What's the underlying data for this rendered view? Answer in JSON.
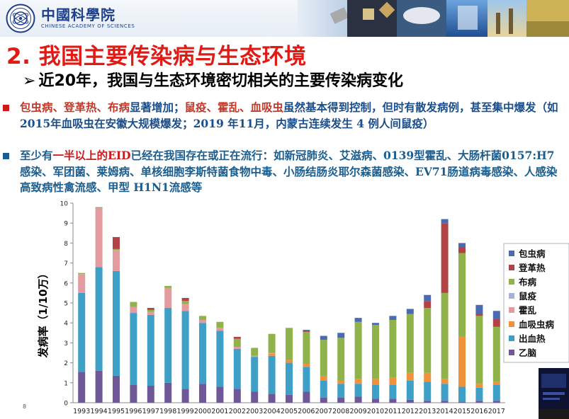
{
  "header": {
    "org_name_cn": "中國科學院",
    "org_name_en": "CHINESE ACADEMY OF SCIENCES"
  },
  "section_title": "2. 我国主要传染病与生态环境",
  "subtitle": "近20年，我国与生态环境密切相关的主要传染病变化",
  "bullets": {
    "b1_part1": "包虫病、登革热、布病",
    "b1_part2": "显著增加；",
    "b1_part3": "鼠疫、霍乱、血吸虫",
    "b1_part4": "虽然基本得到控制，但时有散发病例，甚至集中爆发（如2015年血吸虫在安徽大规模爆发；2019 年11月，内蒙古连续发生 4 例人间鼠疫）",
    "b2_part1": "至少有",
    "b2_part2": "一半以上的EID",
    "b2_part3": "已经在我国存在或正在流行：如新冠肺炎、艾滋病、0139型霍乱、大肠杆菌0157:H7感染、军团菌、莱姆病、单核细胞李斯特菌食物中毒、小肠结肠炎耶尔森菌感染、EV71肠道病毒感染、人感染高致病性禽流感、甲型 H1N1流感等"
  },
  "page_number": "8",
  "colors": {
    "title_red": "#e01b16",
    "bullet_blue": "#1a5d8f"
  },
  "chart_data": {
    "type": "bar",
    "stacked": true,
    "ylabel": "发病率（1/10万）",
    "ylim": [
      0,
      10
    ],
    "yticks": [
      0,
      1,
      2,
      3,
      4,
      5,
      6,
      7,
      8,
      9,
      10
    ],
    "grid": false,
    "legend_position": "right",
    "categories": [
      "1993",
      "1994",
      "1995",
      "1996",
      "1997",
      "1998",
      "1999",
      "2000",
      "2001",
      "2002",
      "2003",
      "2004",
      "2005",
      "2006",
      "2007",
      "2008",
      "2009",
      "2010",
      "2011",
      "2012",
      "2013",
      "2014",
      "2015",
      "2016",
      "2017"
    ],
    "series": [
      {
        "name": "乙脑",
        "color": "#6f5898",
        "values": [
          1.55,
          1.6,
          1.35,
          0.9,
          0.85,
          1.0,
          0.7,
          0.95,
          0.8,
          0.7,
          0.55,
          0.45,
          0.4,
          0.55,
          0.25,
          0.25,
          0.3,
          0.2,
          0.2,
          0.15,
          0.1,
          0.1,
          0.05,
          0.1,
          0.1
        ]
      },
      {
        "name": "出血热",
        "color": "#3ea0c6",
        "values": [
          3.95,
          5.2,
          5.25,
          3.6,
          3.55,
          3.75,
          3.9,
          3.05,
          2.8,
          2.0,
          1.75,
          1.9,
          1.6,
          1.25,
          0.85,
          0.7,
          0.65,
          0.7,
          0.7,
          0.95,
          0.95,
          0.85,
          0.75,
          0.65,
          0.8
        ]
      },
      {
        "name": "血吸虫病",
        "color": "#f0923c",
        "values": [
          0.0,
          0.0,
          0.0,
          0.0,
          0.0,
          0.0,
          0.0,
          0.0,
          0.0,
          0.0,
          0.0,
          0.1,
          0.15,
          0.15,
          0.25,
          0.15,
          0.25,
          0.3,
          0.35,
          0.4,
          0.45,
          0.25,
          2.5,
          0.2,
          0.15
        ]
      },
      {
        "name": "霍乱",
        "color": "#e39ba0",
        "values": [
          0.95,
          2.95,
          1.05,
          0.3,
          0.15,
          1.0,
          0.35,
          0.15,
          0.15,
          0.1,
          0.05,
          0.05,
          0.0,
          0.0,
          0.0,
          0.0,
          0.0,
          0.0,
          0.0,
          0.0,
          0.0,
          0.0,
          0.0,
          0.0,
          0.0
        ]
      },
      {
        "name": "鼠疫",
        "color": "#a3b4d9",
        "values": [
          0.0,
          0.0,
          0.0,
          0.0,
          0.0,
          0.0,
          0.0,
          0.0,
          0.0,
          0.0,
          0.0,
          0.0,
          0.0,
          0.0,
          0.0,
          0.0,
          0.0,
          0.0,
          0.0,
          0.0,
          0.0,
          0.0,
          0.0,
          0.0,
          0.0
        ]
      },
      {
        "name": "布病",
        "color": "#8fb24a",
        "values": [
          0.05,
          0.05,
          0.05,
          0.25,
          0.1,
          0.1,
          0.15,
          0.2,
          0.3,
          0.4,
          0.4,
          0.95,
          1.6,
          1.6,
          1.8,
          2.15,
          2.85,
          2.7,
          2.9,
          2.95,
          3.25,
          4.3,
          4.2,
          3.4,
          2.75
        ]
      },
      {
        "name": "登革热",
        "color": "#b24246",
        "values": [
          0.0,
          0.0,
          0.6,
          0.0,
          0.1,
          0.0,
          0.15,
          0.0,
          0.0,
          0.1,
          0.0,
          0.0,
          0.0,
          0.05,
          0.0,
          0.0,
          0.0,
          0.0,
          0.0,
          0.0,
          0.35,
          3.5,
          0.3,
          0.1,
          0.4
        ]
      },
      {
        "name": "包虫病",
        "color": "#4a6bb0",
        "values": [
          0.0,
          0.0,
          0.0,
          0.0,
          0.0,
          0.0,
          0.0,
          0.0,
          0.0,
          0.0,
          0.0,
          0.0,
          0.0,
          0.05,
          0.2,
          0.25,
          0.2,
          0.1,
          0.2,
          0.25,
          0.3,
          0.2,
          0.2,
          0.45,
          0.4
        ]
      }
    ],
    "legend_order": [
      "包虫病",
      "登革热",
      "布病",
      "鼠疫",
      "霍乱",
      "血吸虫病",
      "出血热",
      "乙脑"
    ]
  }
}
